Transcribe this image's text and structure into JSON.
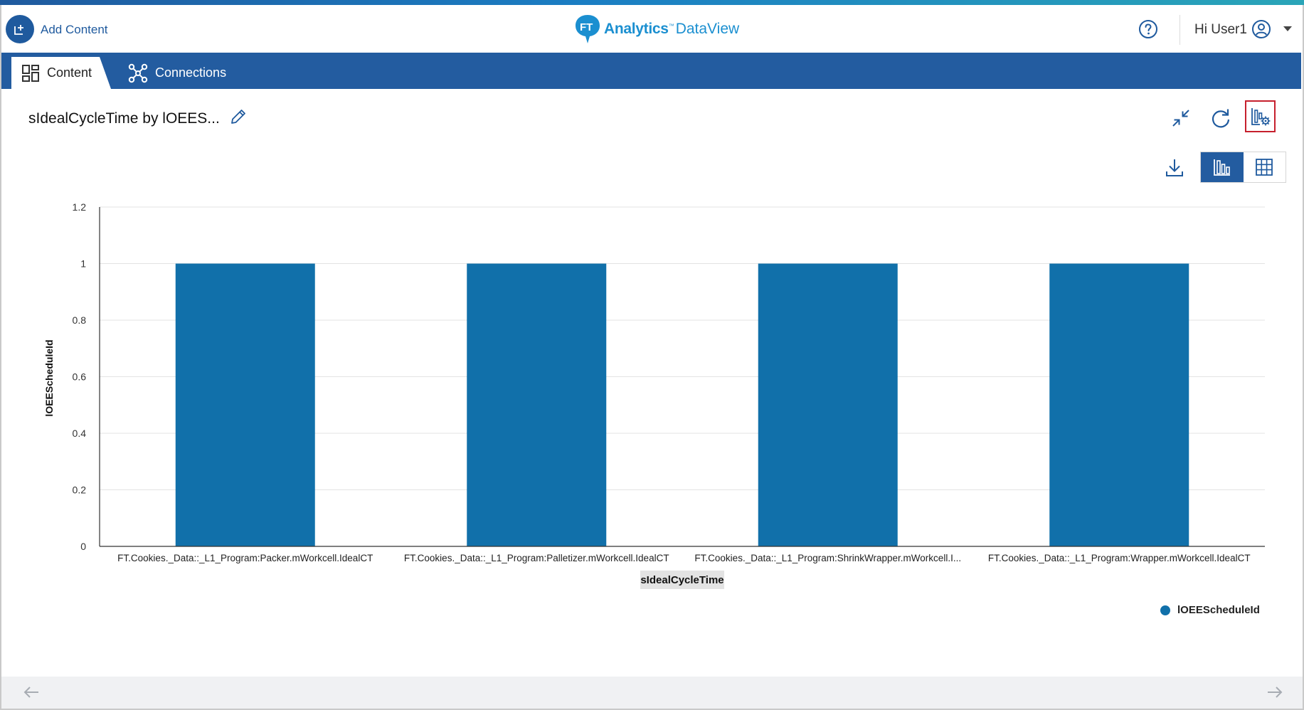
{
  "header": {
    "add_content_label": "Add Content",
    "logo_primary": "Analytics",
    "logo_tm": "™",
    "logo_secondary": "DataView",
    "greeting": "Hi User1",
    "help_icon": "question-circle-icon",
    "user_icon": "user-circle-icon"
  },
  "nav": {
    "tabs": [
      {
        "label": "Content",
        "icon": "grid-icon",
        "active": true
      },
      {
        "label": "Connections",
        "icon": "connections-icon",
        "active": false
      }
    ]
  },
  "toolbar": {
    "title": "sIdealCycleTime by lOEES...",
    "icons": [
      "edit-icon",
      "collapse-icon",
      "refresh-icon",
      "chart-settings-icon",
      "download-icon",
      "bar-chart-icon",
      "table-icon"
    ],
    "accent_color": "#235ca0",
    "highlight_color": "#c6202d"
  },
  "chart_data": {
    "type": "bar",
    "categories": [
      "FT.Cookies._Data::_L1_Program:Packer.mWorkcell.IdealCT",
      "FT.Cookies._Data::_L1_Program:Palletizer.mWorkcell.IdealCT",
      "FT.Cookies._Data::_L1_Program:ShrinkWrapper.mWorkcell.I...",
      "FT.Cookies._Data::_L1_Program:Wrapper.mWorkcell.IdealCT"
    ],
    "series": [
      {
        "name": "lOEEScheduleId",
        "values": [
          1,
          1,
          1,
          1
        ],
        "color": "#1170aa"
      }
    ],
    "xlabel": "sIdealCycleTime",
    "ylabel": "lOEEScheduleId",
    "ylim": [
      0,
      1.2
    ],
    "yticks": [
      "0",
      "0.2",
      "0.4",
      "0.6",
      "0.8",
      "1",
      "1.2"
    ],
    "grid": true,
    "legend": "bottom-right"
  },
  "footer": {
    "prev_icon": "arrow-left-icon",
    "next_icon": "arrow-right-icon"
  }
}
